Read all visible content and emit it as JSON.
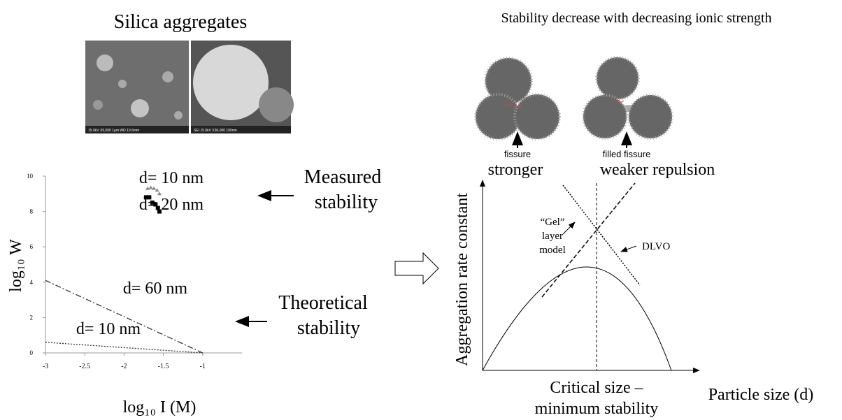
{
  "header": {
    "left_title": "Silica aggregates",
    "right_title": "Stability decrease with decreasing ionic strength"
  },
  "micrographs": [
    "15.0kV X9,500 1μm WD 10.6mm",
    "SEI 15.0kV X30,000 100nm"
  ],
  "schematic": {
    "left_label": "fissure",
    "left_caption": "stronger",
    "right_label": "filled fissure",
    "right_caption": "weaker repulsion"
  },
  "chart_data": {
    "type": "line",
    "xlabel": "log₁₀ I (M)",
    "ylabel": "log₁₀ W",
    "xlim": [
      -3,
      -0.5
    ],
    "ylim": [
      0,
      10
    ],
    "xticks": [
      -3,
      -2.5,
      -2,
      -1.5,
      -1
    ],
    "yticks": [
      0,
      2,
      4,
      6,
      8,
      10
    ],
    "series": [
      {
        "name": "d= 10 nm",
        "kind": "markers",
        "marker": "triangle",
        "color": "#888888",
        "x": [
          -1.7,
          -1.66,
          -1.62,
          -1.58,
          -1.55
        ],
        "values": [
          9.3,
          9.35,
          9.3,
          9.2,
          9.0
        ]
      },
      {
        "name": "d= 20 nm",
        "kind": "markers",
        "marker": "square",
        "color": "#000000",
        "x": [
          -1.72,
          -1.68,
          -1.64,
          -1.6,
          -1.57,
          -1.55
        ],
        "values": [
          8.8,
          8.8,
          8.5,
          8.4,
          8.2,
          8.0
        ]
      },
      {
        "name": "d= 60 nm",
        "kind": "line",
        "dash": "8 3 2 3",
        "color": "#333333",
        "x": [
          -3,
          -1
        ],
        "values": [
          4.1,
          0
        ]
      },
      {
        "name": "d= 10 nm",
        "kind": "line",
        "dash": "2 2",
        "color": "#333333",
        "x": [
          -3,
          -1
        ],
        "values": [
          0.6,
          0
        ]
      }
    ],
    "annotations": [
      "Measured",
      "stability",
      "Theoretical",
      "stability"
    ]
  },
  "model_chart": {
    "ylabel": "Aggregation rate constant",
    "xlabel": "Particle size (d)",
    "critical": [
      "Critical size –",
      "minimum stability"
    ],
    "gel": [
      "“Gel”",
      "layer",
      "model"
    ],
    "dlvo": "DLVO"
  }
}
